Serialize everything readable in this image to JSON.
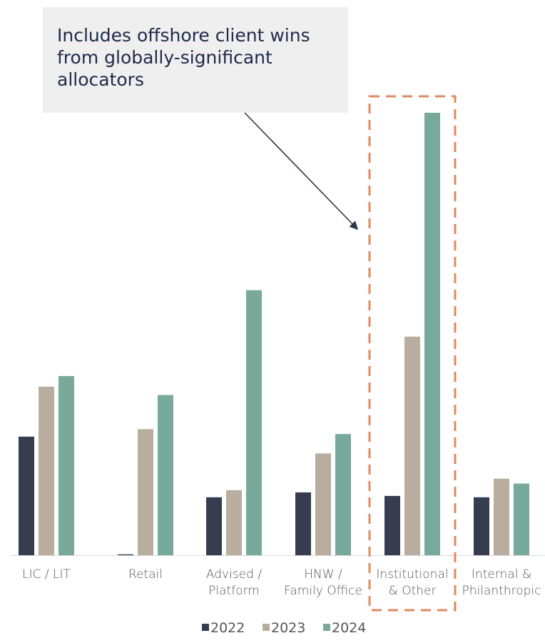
{
  "chart_data": {
    "type": "bar",
    "title": "",
    "xlabel": "",
    "ylabel": "",
    "ylim": [
      0,
      100
    ],
    "grid": false,
    "legend": "bottom-center",
    "categories": [
      [
        "LIC / LIT"
      ],
      [
        "Retail"
      ],
      [
        "Advised /",
        "Platform"
      ],
      [
        "HNW /",
        "Family Office"
      ],
      [
        "Institutional",
        "& Other"
      ],
      [
        "Internal &",
        "Philanthropic"
      ]
    ],
    "series": [
      {
        "name": "2022",
        "color": "#363d4f",
        "values": [
          26.8,
          0.2,
          13.1,
          14.2,
          13.4,
          13.1
        ]
      },
      {
        "name": "2023",
        "color": "#b8ad9e",
        "values": [
          38.1,
          28.5,
          14.7,
          23.0,
          49.4,
          17.3
        ]
      },
      {
        "name": "2024",
        "color": "#78aa9c",
        "values": [
          40.5,
          36.2,
          59.9,
          27.4,
          100.0,
          16.2
        ]
      }
    ],
    "annotations": {
      "callout_lines": [
        "Includes offshore client wins",
        "from globally-significant",
        "allocators"
      ],
      "highlight_category": 4,
      "highlight_color": "#e08a5e",
      "arrow_color": "#2c3447"
    }
  }
}
